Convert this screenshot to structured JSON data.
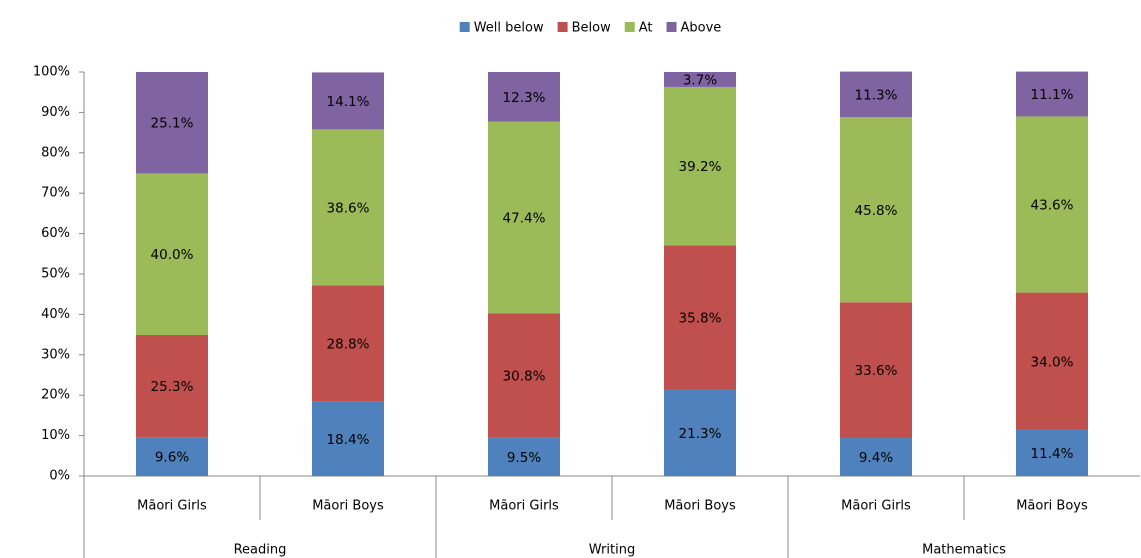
{
  "chart_data": {
    "type": "stacked_bar",
    "categories": [
      "Māori Girls",
      "Māori Boys",
      "Māori Girls",
      "Māori Boys",
      "Māori Girls",
      "Māori Boys"
    ],
    "groups": [
      "Reading",
      "Writing",
      "Mathematics"
    ],
    "series": [
      {
        "name": "Well below",
        "color": "#4f81bd",
        "values": [
          9.6,
          18.4,
          9.5,
          21.3,
          9.4,
          11.4
        ],
        "value_labels": [
          "9.6%",
          "18.4%",
          "9.5%",
          "21.3%",
          "9.4%",
          "11.4%"
        ]
      },
      {
        "name": "Below",
        "color": "#c0504d",
        "values": [
          25.3,
          28.8,
          30.8,
          35.8,
          33.6,
          34.0
        ],
        "value_labels": [
          "25.3%",
          "28.8%",
          "30.8%",
          "35.8%",
          "33.6%",
          "34.0%"
        ]
      },
      {
        "name": "At",
        "color": "#9bbb59",
        "values": [
          40.0,
          38.6,
          47.4,
          39.2,
          45.8,
          43.6
        ],
        "value_labels": [
          "40.0%",
          "38.6%",
          "47.4%",
          "39.2%",
          "45.8%",
          "43.6%"
        ]
      },
      {
        "name": "Above",
        "color": "#8064a2",
        "values": [
          25.1,
          14.1,
          12.3,
          3.7,
          11.3,
          11.1
        ],
        "value_labels": [
          "25.1%",
          "14.1%",
          "12.3%",
          "3.7%",
          "11.3%",
          "11.1%"
        ]
      }
    ],
    "ylim": [
      0,
      100
    ],
    "yticks": [
      {
        "value": 0,
        "label": "0%"
      },
      {
        "value": 10,
        "label": "10%"
      },
      {
        "value": 20,
        "label": "20%"
      },
      {
        "value": 30,
        "label": "30%"
      },
      {
        "value": 40,
        "label": "40%"
      },
      {
        "value": 50,
        "label": "50%"
      },
      {
        "value": 60,
        "label": "60%"
      },
      {
        "value": 70,
        "label": "70%"
      },
      {
        "value": 80,
        "label": "80%"
      },
      {
        "value": 90,
        "label": "90%"
      },
      {
        "value": 100,
        "label": "100%"
      }
    ],
    "legend": "top"
  }
}
